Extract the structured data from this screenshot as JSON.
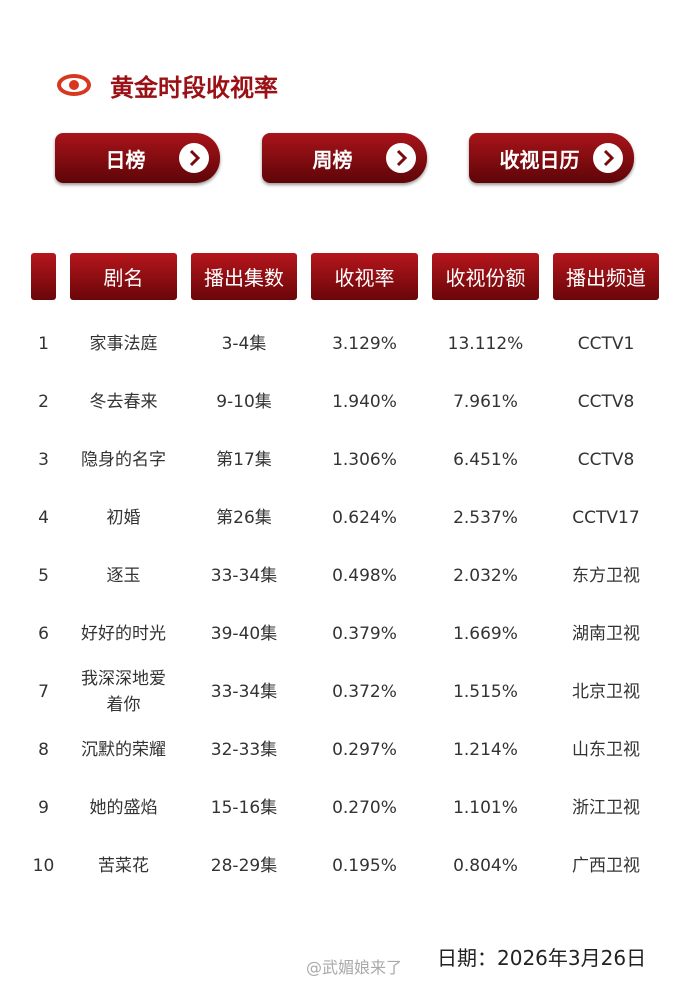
{
  "header": {
    "title": "黄金时段收视率"
  },
  "buttons": [
    "日榜",
    "周榜",
    "收视日历"
  ],
  "table": {
    "columns": [
      "剧名",
      "播出集数",
      "收视率",
      "收视份额",
      "播出频道"
    ],
    "rows": [
      [
        "1",
        "家事法庭",
        "3-4集",
        "3.129%",
        "13.112%",
        "CCTV1"
      ],
      [
        "2",
        "冬去春来",
        "9-10集",
        "1.940%",
        "7.961%",
        "CCTV8"
      ],
      [
        "3",
        "隐身的名字",
        "第17集",
        "1.306%",
        "6.451%",
        "CCTV8"
      ],
      [
        "4",
        "初婚",
        "第26集",
        "0.624%",
        "2.537%",
        "CCTV17"
      ],
      [
        "5",
        "逐玉",
        "33-34集",
        "0.498%",
        "2.032%",
        "东方卫视"
      ],
      [
        "6",
        "好好的时光",
        "39-40集",
        "0.379%",
        "1.669%",
        "湖南卫视"
      ],
      [
        "7",
        "我深深地爱着你",
        "33-34集",
        "0.372%",
        "1.515%",
        "北京卫视"
      ],
      [
        "8",
        "沉默的荣耀",
        "32-33集",
        "0.297%",
        "1.214%",
        "山东卫视"
      ],
      [
        "9",
        "她的盛焰",
        "15-16集",
        "0.270%",
        "1.101%",
        "浙江卫视"
      ],
      [
        "10",
        "苦菜花",
        "28-29集",
        "0.195%",
        "0.804%",
        "广西卫视"
      ]
    ]
  },
  "footer": {
    "date": "日期：2026年3月26日",
    "watermark": "@武媚娘来了"
  }
}
